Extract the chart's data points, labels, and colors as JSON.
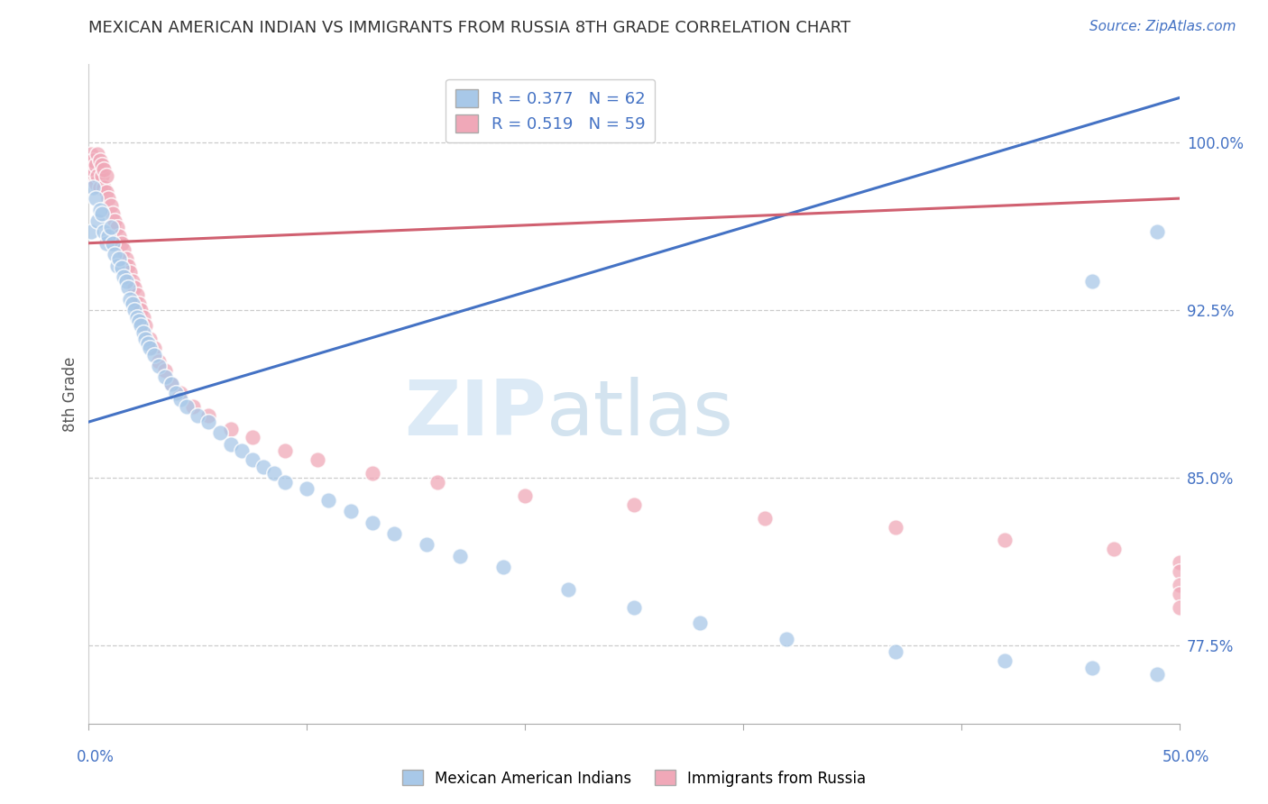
{
  "title": "MEXICAN AMERICAN INDIAN VS IMMIGRANTS FROM RUSSIA 8TH GRADE CORRELATION CHART",
  "source": "Source: ZipAtlas.com",
  "ylabel": "8th Grade",
  "ytick_labels": [
    "77.5%",
    "85.0%",
    "92.5%",
    "100.0%"
  ],
  "ytick_values": [
    0.775,
    0.85,
    0.925,
    1.0
  ],
  "legend_r1": "R = 0.377",
  "legend_n1": "N = 62",
  "legend_r2": "R = 0.519",
  "legend_n2": "N = 59",
  "blue_color": "#A8C8E8",
  "pink_color": "#F0A8B8",
  "blue_line_color": "#4472C4",
  "pink_line_color": "#D06070",
  "watermark_zip": "ZIP",
  "watermark_atlas": "atlas",
  "blue_trendline": [
    0.0,
    0.875,
    0.5,
    1.02
  ],
  "pink_trendline": [
    0.0,
    0.955,
    0.5,
    0.975
  ],
  "blue_scatter_x": [
    0.001,
    0.002,
    0.003,
    0.004,
    0.005,
    0.006,
    0.007,
    0.008,
    0.009,
    0.01,
    0.011,
    0.012,
    0.013,
    0.014,
    0.015,
    0.016,
    0.017,
    0.018,
    0.019,
    0.02,
    0.021,
    0.022,
    0.023,
    0.024,
    0.025,
    0.026,
    0.027,
    0.028,
    0.03,
    0.032,
    0.035,
    0.038,
    0.04,
    0.042,
    0.045,
    0.05,
    0.055,
    0.06,
    0.065,
    0.07,
    0.075,
    0.08,
    0.085,
    0.09,
    0.1,
    0.11,
    0.12,
    0.13,
    0.14,
    0.155,
    0.17,
    0.19,
    0.22,
    0.25,
    0.28,
    0.32,
    0.37,
    0.42,
    0.46,
    0.49,
    0.46,
    0.49
  ],
  "blue_scatter_y": [
    0.96,
    0.98,
    0.975,
    0.965,
    0.97,
    0.968,
    0.96,
    0.955,
    0.958,
    0.962,
    0.955,
    0.95,
    0.945,
    0.948,
    0.944,
    0.94,
    0.938,
    0.935,
    0.93,
    0.928,
    0.925,
    0.922,
    0.92,
    0.918,
    0.915,
    0.912,
    0.91,
    0.908,
    0.905,
    0.9,
    0.895,
    0.892,
    0.888,
    0.885,
    0.882,
    0.878,
    0.875,
    0.87,
    0.865,
    0.862,
    0.858,
    0.855,
    0.852,
    0.848,
    0.845,
    0.84,
    0.835,
    0.83,
    0.825,
    0.82,
    0.815,
    0.81,
    0.8,
    0.792,
    0.785,
    0.778,
    0.772,
    0.768,
    0.765,
    0.762,
    0.938,
    0.96
  ],
  "pink_scatter_x": [
    0.001,
    0.001,
    0.002,
    0.002,
    0.003,
    0.003,
    0.004,
    0.004,
    0.005,
    0.005,
    0.006,
    0.006,
    0.007,
    0.007,
    0.008,
    0.008,
    0.009,
    0.01,
    0.011,
    0.012,
    0.013,
    0.014,
    0.015,
    0.016,
    0.017,
    0.018,
    0.019,
    0.02,
    0.021,
    0.022,
    0.023,
    0.024,
    0.025,
    0.026,
    0.028,
    0.03,
    0.032,
    0.035,
    0.038,
    0.042,
    0.048,
    0.055,
    0.065,
    0.075,
    0.09,
    0.105,
    0.13,
    0.16,
    0.2,
    0.25,
    0.31,
    0.37,
    0.42,
    0.47,
    0.5,
    0.5,
    0.5,
    0.5,
    0.5
  ],
  "pink_scatter_y": [
    0.985,
    0.995,
    0.988,
    0.992,
    0.982,
    0.99,
    0.985,
    0.995,
    0.98,
    0.992,
    0.985,
    0.99,
    0.98,
    0.988,
    0.978,
    0.985,
    0.975,
    0.972,
    0.968,
    0.965,
    0.962,
    0.958,
    0.955,
    0.952,
    0.948,
    0.945,
    0.942,
    0.938,
    0.935,
    0.932,
    0.928,
    0.925,
    0.922,
    0.918,
    0.912,
    0.908,
    0.902,
    0.898,
    0.892,
    0.888,
    0.882,
    0.878,
    0.872,
    0.868,
    0.862,
    0.858,
    0.852,
    0.848,
    0.842,
    0.838,
    0.832,
    0.828,
    0.822,
    0.818,
    0.812,
    0.808,
    0.802,
    0.798,
    0.792
  ]
}
